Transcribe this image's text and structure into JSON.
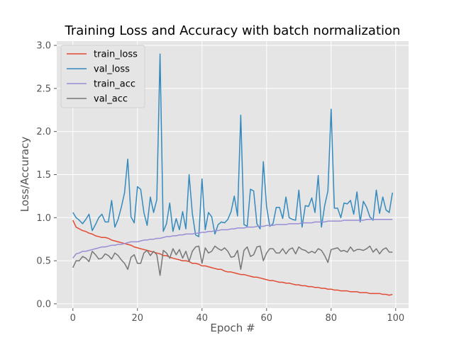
{
  "chart_data": {
    "type": "line",
    "title": "Training Loss and Accuracy with batch normalization",
    "xlabel": "Epoch #",
    "ylabel": "Loss/Accuracy",
    "xlim": [
      -5,
      104
    ],
    "ylim": [
      -0.05,
      3.05
    ],
    "x_ticks": [
      0,
      20,
      40,
      60,
      80,
      100
    ],
    "y_ticks": [
      0.0,
      0.5,
      1.0,
      1.5,
      2.0,
      2.5,
      3.0
    ],
    "x_tick_labels": [
      "0",
      "20",
      "40",
      "60",
      "80",
      "100"
    ],
    "y_tick_labels": [
      "0.0",
      "0.5",
      "1.0",
      "1.5",
      "2.0",
      "2.5",
      "3.0"
    ],
    "grid": true,
    "legend_position": "top-left",
    "style": "ggplot",
    "x": [
      0,
      1,
      2,
      3,
      4,
      5,
      6,
      7,
      8,
      9,
      10,
      11,
      12,
      13,
      14,
      15,
      16,
      17,
      18,
      19,
      20,
      21,
      22,
      23,
      24,
      25,
      26,
      27,
      28,
      29,
      30,
      31,
      32,
      33,
      34,
      35,
      36,
      37,
      38,
      39,
      40,
      41,
      42,
      43,
      44,
      45,
      46,
      47,
      48,
      49,
      50,
      51,
      52,
      53,
      54,
      55,
      56,
      57,
      58,
      59,
      60,
      61,
      62,
      63,
      64,
      65,
      66,
      67,
      68,
      69,
      70,
      71,
      72,
      73,
      74,
      75,
      76,
      77,
      78,
      79,
      80,
      81,
      82,
      83,
      84,
      85,
      86,
      87,
      88,
      89,
      90,
      91,
      92,
      93,
      94,
      95,
      96,
      97,
      98,
      99
    ],
    "series": [
      {
        "name": "train_loss",
        "color": "#E24A33",
        "values": [
          0.97,
          0.89,
          0.87,
          0.85,
          0.84,
          0.82,
          0.81,
          0.79,
          0.78,
          0.77,
          0.77,
          0.76,
          0.74,
          0.73,
          0.72,
          0.71,
          0.7,
          0.69,
          0.68,
          0.66,
          0.65,
          0.64,
          0.63,
          0.62,
          0.61,
          0.6,
          0.59,
          0.58,
          0.56,
          0.56,
          0.54,
          0.53,
          0.52,
          0.51,
          0.5,
          0.5,
          0.49,
          0.47,
          0.47,
          0.46,
          0.44,
          0.44,
          0.43,
          0.42,
          0.41,
          0.4,
          0.4,
          0.38,
          0.37,
          0.37,
          0.36,
          0.35,
          0.34,
          0.34,
          0.33,
          0.32,
          0.31,
          0.31,
          0.3,
          0.29,
          0.28,
          0.27,
          0.27,
          0.26,
          0.25,
          0.25,
          0.24,
          0.24,
          0.23,
          0.22,
          0.22,
          0.21,
          0.21,
          0.2,
          0.2,
          0.19,
          0.19,
          0.18,
          0.18,
          0.17,
          0.17,
          0.16,
          0.16,
          0.15,
          0.15,
          0.15,
          0.14,
          0.14,
          0.14,
          0.13,
          0.13,
          0.13,
          0.12,
          0.12,
          0.12,
          0.12,
          0.11,
          0.11,
          0.1,
          0.11
        ]
      },
      {
        "name": "val_loss",
        "color": "#348ABD",
        "values": [
          1.06,
          1.0,
          0.97,
          0.93,
          0.98,
          1.04,
          0.85,
          0.92,
          1.0,
          1.04,
          0.95,
          0.95,
          1.2,
          0.89,
          0.98,
          1.12,
          1.29,
          1.68,
          1.01,
          0.94,
          1.36,
          1.33,
          1.06,
          0.91,
          1.24,
          1.06,
          1.21,
          2.9,
          0.84,
          0.93,
          1.17,
          0.84,
          0.99,
          0.86,
          1.07,
          0.87,
          1.5,
          1.05,
          0.8,
          0.78,
          1.45,
          0.86,
          1.06,
          1.01,
          0.81,
          0.92,
          0.95,
          0.94,
          0.98,
          1.07,
          1.25,
          1.02,
          2.19,
          0.92,
          0.9,
          1.33,
          1.31,
          0.93,
          0.87,
          1.65,
          1.13,
          0.9,
          0.93,
          1.12,
          1.12,
          0.99,
          1.24,
          1.0,
          0.98,
          0.97,
          1.32,
          0.89,
          1.14,
          1.13,
          1.23,
          1.06,
          1.49,
          0.89,
          1.14,
          1.31,
          2.26,
          1.11,
          1.11,
          1.0,
          1.17,
          1.16,
          1.2,
          1.04,
          1.3,
          0.95,
          1.19,
          1.12,
          1.01,
          0.97,
          1.32,
          1.05,
          1.24,
          1.09,
          1.06,
          1.29
        ]
      },
      {
        "name": "train_acc",
        "color": "#988ED5",
        "values": [
          0.53,
          0.58,
          0.59,
          0.61,
          0.61,
          0.62,
          0.63,
          0.64,
          0.65,
          0.66,
          0.66,
          0.67,
          0.68,
          0.68,
          0.69,
          0.69,
          0.7,
          0.71,
          0.72,
          0.72,
          0.72,
          0.73,
          0.74,
          0.74,
          0.75,
          0.75,
          0.76,
          0.76,
          0.77,
          0.78,
          0.78,
          0.79,
          0.79,
          0.8,
          0.8,
          0.81,
          0.81,
          0.81,
          0.82,
          0.82,
          0.83,
          0.83,
          0.84,
          0.84,
          0.85,
          0.85,
          0.86,
          0.86,
          0.86,
          0.87,
          0.87,
          0.88,
          0.88,
          0.88,
          0.89,
          0.89,
          0.89,
          0.9,
          0.9,
          0.9,
          0.91,
          0.91,
          0.91,
          0.92,
          0.92,
          0.92,
          0.92,
          0.93,
          0.93,
          0.93,
          0.93,
          0.94,
          0.94,
          0.94,
          0.94,
          0.95,
          0.95,
          0.95,
          0.95,
          0.96,
          0.96,
          0.96,
          0.96,
          0.96,
          0.97,
          0.97,
          0.97,
          0.97,
          0.97,
          0.97,
          0.97,
          0.98,
          0.98,
          0.98,
          0.98,
          0.98,
          0.98,
          0.98,
          0.98,
          0.98
        ]
      },
      {
        "name": "val_acc",
        "color": "#777777",
        "values": [
          0.42,
          0.5,
          0.5,
          0.55,
          0.53,
          0.49,
          0.61,
          0.57,
          0.52,
          0.53,
          0.58,
          0.56,
          0.52,
          0.59,
          0.56,
          0.51,
          0.47,
          0.4,
          0.54,
          0.57,
          0.47,
          0.47,
          0.59,
          0.62,
          0.56,
          0.61,
          0.57,
          0.33,
          0.62,
          0.59,
          0.53,
          0.64,
          0.57,
          0.63,
          0.53,
          0.61,
          0.49,
          0.61,
          0.66,
          0.67,
          0.47,
          0.65,
          0.59,
          0.61,
          0.67,
          0.64,
          0.62,
          0.65,
          0.61,
          0.54,
          0.55,
          0.62,
          0.4,
          0.62,
          0.66,
          0.55,
          0.57,
          0.66,
          0.67,
          0.5,
          0.59,
          0.64,
          0.64,
          0.59,
          0.59,
          0.64,
          0.58,
          0.63,
          0.65,
          0.58,
          0.66,
          0.63,
          0.62,
          0.59,
          0.61,
          0.59,
          0.64,
          0.62,
          0.56,
          0.48,
          0.63,
          0.64,
          0.65,
          0.61,
          0.62,
          0.6,
          0.66,
          0.61,
          0.63,
          0.63,
          0.62,
          0.64,
          0.67,
          0.6,
          0.64,
          0.58,
          0.63,
          0.65,
          0.6,
          0.6
        ]
      }
    ]
  }
}
